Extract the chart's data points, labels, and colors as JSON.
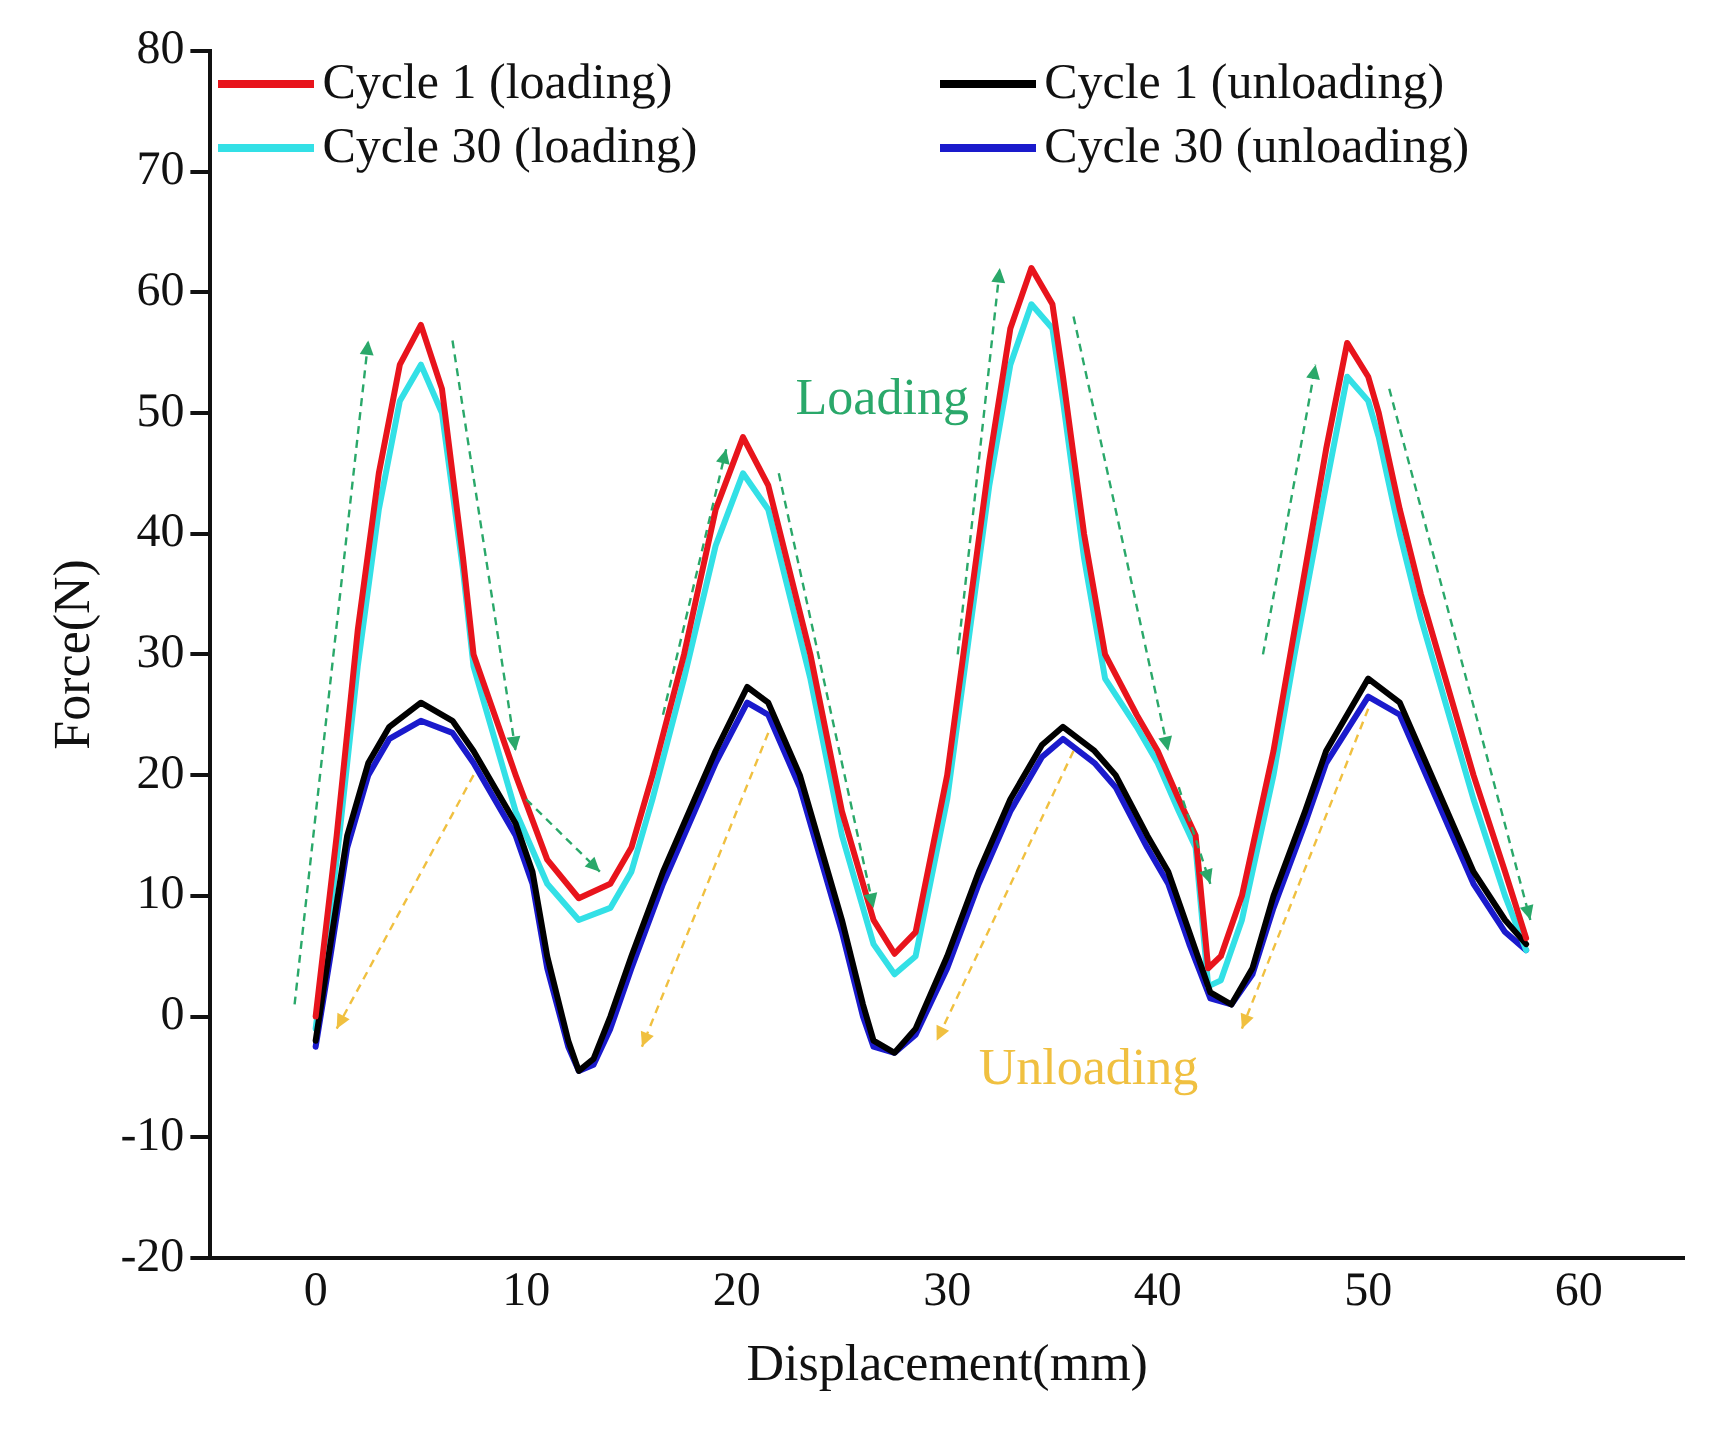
{
  "chart_data": {
    "type": "line",
    "xlabel": "Displacement(mm)",
    "ylabel": "Force(N)",
    "xlim": [
      -5,
      65
    ],
    "xticks": [
      0,
      10,
      20,
      30,
      40,
      50,
      60
    ],
    "ylim": [
      -20,
      80
    ],
    "yticks": [
      -20,
      -10,
      0,
      10,
      20,
      30,
      40,
      50,
      60,
      70,
      80
    ],
    "grid": false,
    "legend": "top",
    "marker": "none",
    "line_style": "solid",
    "annotations": [
      {
        "text": "Loading",
        "x": 34,
        "y": 62
      },
      {
        "text": "Unloading",
        "x": 27.5,
        "y": -3
      }
    ],
    "series": [
      {
        "name": "Cycle 1 (loading)",
        "color": "#e8141c",
        "x": [
          0,
          1,
          2,
          3,
          4,
          5,
          6,
          7,
          7.5,
          8.5,
          9.5,
          11,
          12.5,
          14,
          15,
          16,
          17.5,
          19,
          20.3,
          21.5,
          23.5,
          25,
          26.5,
          27.5,
          28.5,
          30,
          31,
          32,
          33,
          34,
          35,
          35.5,
          36.5,
          37.5,
          39,
          40,
          41,
          41.8,
          42.4,
          43,
          44,
          45.5,
          46.5,
          48,
          49,
          50,
          50.5,
          51.5,
          52.5,
          54,
          55,
          56.5,
          57.5
        ],
        "values": [
          0,
          15,
          32,
          45,
          54,
          57.3,
          52,
          38,
          30,
          25,
          20,
          13,
          9.8,
          11,
          14,
          20,
          30,
          42,
          48,
          44,
          30,
          17,
          8,
          5.2,
          7,
          20,
          33,
          46,
          57,
          62,
          59,
          53,
          40,
          30,
          25,
          22,
          18,
          15,
          4,
          5,
          10,
          22,
          32,
          47,
          55.8,
          53,
          50,
          42,
          35,
          26,
          20,
          12,
          6.5
        ]
      },
      {
        "name": "Cycle 1 (unloading)",
        "color": "#000000",
        "x": [
          0,
          0.7,
          1.5,
          2.5,
          3.5,
          5,
          6.5,
          7.5,
          8.5,
          9.5,
          10.3,
          11,
          12,
          12.5,
          13.2,
          14,
          15,
          16.5,
          18,
          19,
          20.5,
          21.5,
          23,
          24,
          25,
          26,
          26.5,
          27.5,
          28.5,
          30,
          31.5,
          33,
          34.5,
          35.5,
          37,
          38,
          39.5,
          40.5,
          41.5,
          42.5,
          43.5,
          44.5,
          45.5,
          47,
          48,
          50,
          51.5,
          52.5,
          54,
          55,
          56.5,
          57.5
        ],
        "values": [
          -2,
          6,
          15,
          21,
          24,
          26,
          24.5,
          22,
          19,
          16,
          12,
          5,
          -2,
          -4.5,
          -3.5,
          0,
          5,
          12,
          18,
          22,
          27.3,
          26,
          20,
          14,
          8,
          1,
          -2,
          -3,
          -1,
          5,
          12,
          18,
          22.5,
          24,
          22,
          20,
          15,
          12,
          7,
          2,
          1,
          4,
          10,
          17,
          22,
          28,
          26,
          22,
          16,
          12,
          8,
          6
        ]
      },
      {
        "name": "Cycle 30 (loading)",
        "color": "#33e0e6",
        "x": [
          0,
          1,
          2,
          3,
          4,
          5,
          6,
          7,
          7.5,
          8.5,
          9.5,
          11,
          12.5,
          14,
          15,
          16,
          17.5,
          19,
          20.3,
          21.5,
          23.5,
          25,
          26.5,
          27.5,
          28.5,
          30,
          31,
          32,
          33,
          34,
          35,
          35.5,
          36.5,
          37.5,
          39,
          40,
          41,
          41.8,
          42.4,
          43,
          44,
          45.5,
          46.5,
          48,
          49,
          50,
          50.5,
          51.5,
          52.5,
          54,
          55,
          56.5,
          57.5
        ],
        "values": [
          -1,
          13,
          29,
          42,
          51,
          54,
          50,
          37,
          29,
          23,
          17,
          11,
          8,
          9,
          12,
          18,
          28,
          39,
          45,
          42,
          28,
          15,
          6,
          3.5,
          5,
          18,
          31,
          44,
          54,
          59,
          57,
          51,
          38,
          28,
          24,
          21,
          17,
          14,
          2.5,
          3,
          8,
          20,
          30,
          44,
          53,
          51,
          48,
          40,
          33,
          24,
          18,
          10,
          5.5
        ]
      },
      {
        "name": "Cycle 30 (unloading)",
        "color": "#1a1acc",
        "x": [
          0,
          0.7,
          1.5,
          2.5,
          3.5,
          5,
          6.5,
          7.5,
          8.5,
          9.5,
          10.3,
          11,
          12,
          12.5,
          13.2,
          14,
          15,
          16.5,
          18,
          19,
          20.5,
          21.5,
          23,
          24,
          25,
          26,
          26.5,
          27.5,
          28.5,
          30,
          31.5,
          33,
          34.5,
          35.5,
          37,
          38,
          39.5,
          40.5,
          41.5,
          42.5,
          43.5,
          44.5,
          45.5,
          47,
          48,
          50,
          51.5,
          52.5,
          54,
          55,
          56.5,
          57.5
        ],
        "values": [
          -2.5,
          5,
          14,
          20,
          23,
          24.5,
          23.5,
          21,
          18,
          15,
          11,
          4,
          -2.5,
          -4.5,
          -4,
          -1,
          4,
          11,
          17,
          21,
          26,
          25,
          19,
          13,
          7,
          0,
          -2.5,
          -3,
          -1.5,
          4,
          11,
          17,
          21.5,
          23,
          21,
          19,
          14,
          11,
          6,
          1.5,
          1,
          3.5,
          9,
          16,
          21,
          26.5,
          25,
          21,
          15,
          11,
          7,
          5.5
        ]
      }
    ]
  }
}
